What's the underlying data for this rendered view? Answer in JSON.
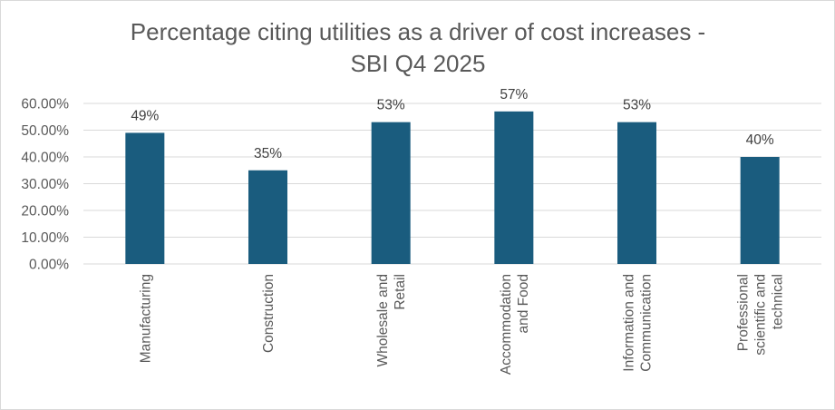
{
  "chart_data": {
    "type": "bar",
    "title_lines": [
      "Percentage citing utilities as a driver of cost increases -",
      "SBI Q4 2025"
    ],
    "categories": [
      [
        "Manufacturing"
      ],
      [
        "Construction"
      ],
      [
        "Wholesale and",
        "Retail"
      ],
      [
        "Accommodation",
        "and Food"
      ],
      [
        "Information and",
        "Communication"
      ],
      [
        "Professional",
        "scientific and",
        "technical"
      ]
    ],
    "values": [
      49,
      35,
      53,
      57,
      53,
      40
    ],
    "data_labels": [
      "49%",
      "35%",
      "53%",
      "57%",
      "53%",
      "40%"
    ],
    "ylim": [
      0,
      60
    ],
    "yticks": [
      0,
      10,
      20,
      30,
      40,
      50,
      60
    ],
    "ytick_labels": [
      "0.00%",
      "10.00%",
      "20.00%",
      "30.00%",
      "40.00%",
      "50.00%",
      "60.00%"
    ],
    "grid": true,
    "bar_color": "#1a5c7e",
    "xlabel": "",
    "ylabel": ""
  }
}
